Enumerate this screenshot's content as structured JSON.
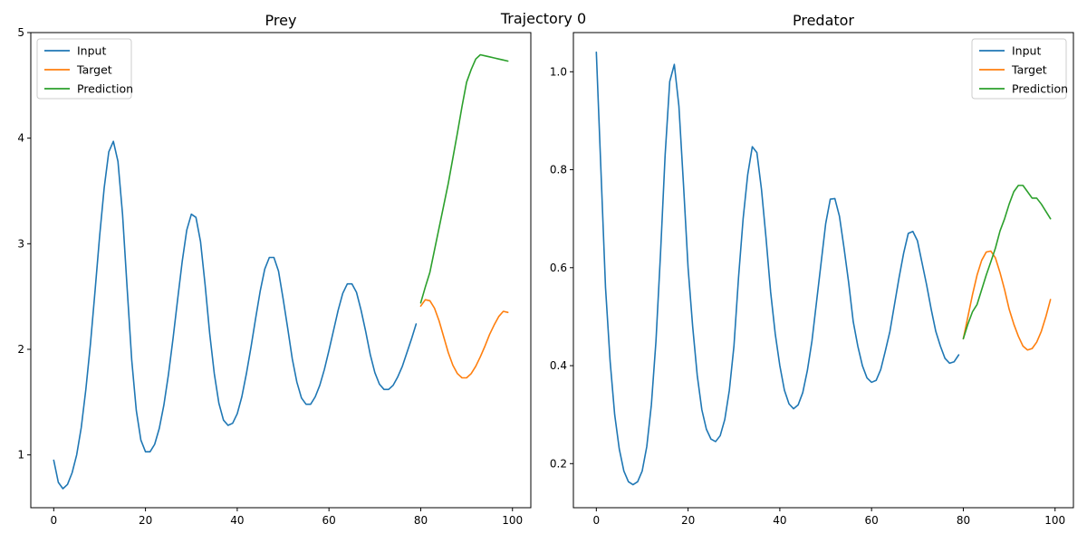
{
  "suptitle": "Trajectory 0",
  "chart_data": [
    {
      "type": "line",
      "title": "Prey",
      "xlabel": "",
      "ylabel": "",
      "xlim": [
        -5,
        104
      ],
      "ylim": [
        0.5,
        5.0
      ],
      "xticks": [
        0,
        20,
        40,
        60,
        80,
        100
      ],
      "yticks": [
        1,
        2,
        3,
        4,
        5
      ],
      "legend_position": "upper-left",
      "grid": false,
      "series": [
        {
          "name": "Input",
          "color": "#1f77b4",
          "x": [
            0,
            1,
            2,
            3,
            4,
            5,
            6,
            7,
            8,
            9,
            10,
            11,
            12,
            13,
            14,
            15,
            16,
            17,
            18,
            19,
            20,
            21,
            22,
            23,
            24,
            25,
            26,
            27,
            28,
            29,
            30,
            31,
            32,
            33,
            34,
            35,
            36,
            37,
            38,
            39,
            40,
            41,
            42,
            43,
            44,
            45,
            46,
            47,
            48,
            49,
            50,
            51,
            52,
            53,
            54,
            55,
            56,
            57,
            58,
            59,
            60,
            61,
            62,
            63,
            64,
            65,
            66,
            67,
            68,
            69,
            70,
            71,
            72,
            73,
            74,
            75,
            76,
            77,
            78,
            79
          ],
          "y": [
            0.95,
            0.74,
            0.68,
            0.72,
            0.83,
            1.0,
            1.26,
            1.62,
            2.05,
            2.55,
            3.07,
            3.53,
            3.87,
            3.97,
            3.78,
            3.28,
            2.58,
            1.9,
            1.42,
            1.14,
            1.03,
            1.03,
            1.1,
            1.25,
            1.47,
            1.76,
            2.1,
            2.47,
            2.83,
            3.13,
            3.28,
            3.25,
            3.02,
            2.61,
            2.15,
            1.77,
            1.49,
            1.33,
            1.28,
            1.3,
            1.39,
            1.55,
            1.77,
            2.02,
            2.29,
            2.55,
            2.76,
            2.87,
            2.87,
            2.74,
            2.48,
            2.2,
            1.91,
            1.69,
            1.54,
            1.48,
            1.48,
            1.55,
            1.66,
            1.81,
            1.99,
            2.18,
            2.37,
            2.53,
            2.62,
            2.62,
            2.54,
            2.37,
            2.17,
            1.95,
            1.78,
            1.67,
            1.62,
            1.62,
            1.66,
            1.74,
            1.84,
            1.97,
            2.1,
            2.24
          ]
        },
        {
          "name": "Target",
          "color": "#ff7f0e",
          "x": [
            80,
            81,
            82,
            83,
            84,
            85,
            86,
            87,
            88,
            89,
            90,
            91,
            92,
            93,
            94,
            95,
            96,
            97,
            98,
            99
          ],
          "y": [
            2.41,
            2.47,
            2.46,
            2.39,
            2.27,
            2.12,
            1.97,
            1.85,
            1.77,
            1.73,
            1.73,
            1.77,
            1.84,
            1.93,
            2.03,
            2.14,
            2.23,
            2.31,
            2.36,
            2.35
          ]
        },
        {
          "name": "Prediction",
          "color": "#2ca02c",
          "x": [
            80,
            81,
            82,
            83,
            84,
            85,
            86,
            87,
            88,
            89,
            90,
            91,
            92,
            93,
            94,
            95,
            96,
            97,
            98,
            99
          ],
          "y": [
            2.44,
            2.59,
            2.73,
            2.94,
            3.15,
            3.36,
            3.57,
            3.81,
            4.05,
            4.3,
            4.53,
            4.65,
            4.75,
            4.79,
            4.78,
            4.77,
            4.76,
            4.75,
            4.74,
            4.73
          ]
        }
      ]
    },
    {
      "type": "line",
      "title": "Predator",
      "xlabel": "",
      "ylabel": "",
      "xlim": [
        -5,
        104
      ],
      "ylim": [
        0.11,
        1.08
      ],
      "xticks": [
        0,
        20,
        40,
        60,
        80,
        100
      ],
      "yticks": [
        0.2,
        0.4,
        0.6,
        0.8,
        1.0
      ],
      "legend_position": "upper-right",
      "grid": false,
      "series": [
        {
          "name": "Input",
          "color": "#1f77b4",
          "x": [
            0,
            1,
            2,
            3,
            4,
            5,
            6,
            7,
            8,
            9,
            10,
            11,
            12,
            13,
            14,
            15,
            16,
            17,
            18,
            19,
            20,
            21,
            22,
            23,
            24,
            25,
            26,
            27,
            28,
            29,
            30,
            31,
            32,
            33,
            34,
            35,
            36,
            37,
            38,
            39,
            40,
            41,
            42,
            43,
            44,
            45,
            46,
            47,
            48,
            49,
            50,
            51,
            52,
            53,
            54,
            55,
            56,
            57,
            58,
            59,
            60,
            61,
            62,
            63,
            64,
            65,
            66,
            67,
            68,
            69,
            70,
            71,
            72,
            73,
            74,
            75,
            76,
            77,
            78,
            79
          ],
          "y": [
            1.04,
            0.8,
            0.56,
            0.41,
            0.3,
            0.23,
            0.185,
            0.163,
            0.157,
            0.163,
            0.185,
            0.235,
            0.32,
            0.45,
            0.63,
            0.83,
            0.98,
            1.015,
            0.93,
            0.77,
            0.6,
            0.48,
            0.38,
            0.31,
            0.27,
            0.25,
            0.245,
            0.257,
            0.29,
            0.35,
            0.44,
            0.58,
            0.7,
            0.79,
            0.847,
            0.835,
            0.76,
            0.66,
            0.55,
            0.465,
            0.4,
            0.35,
            0.322,
            0.312,
            0.32,
            0.345,
            0.39,
            0.45,
            0.53,
            0.61,
            0.69,
            0.74,
            0.741,
            0.705,
            0.64,
            0.57,
            0.49,
            0.44,
            0.4,
            0.375,
            0.366,
            0.37,
            0.392,
            0.43,
            0.47,
            0.525,
            0.58,
            0.63,
            0.67,
            0.674,
            0.655,
            0.61,
            0.565,
            0.515,
            0.47,
            0.44,
            0.415,
            0.405,
            0.408,
            0.422
          ]
        },
        {
          "name": "Target",
          "color": "#ff7f0e",
          "x": [
            80,
            81,
            82,
            83,
            84,
            85,
            86,
            87,
            88,
            89,
            90,
            91,
            92,
            93,
            94,
            95,
            96,
            97,
            98,
            99
          ],
          "y": [
            0.455,
            0.5,
            0.545,
            0.585,
            0.615,
            0.632,
            0.634,
            0.62,
            0.59,
            0.555,
            0.515,
            0.485,
            0.46,
            0.44,
            0.432,
            0.435,
            0.448,
            0.47,
            0.5,
            0.535
          ]
        },
        {
          "name": "Prediction",
          "color": "#2ca02c",
          "x": [
            80,
            81,
            82,
            83,
            84,
            85,
            86,
            87,
            88,
            89,
            90,
            91,
            92,
            93,
            94,
            95,
            96,
            97,
            98,
            99
          ],
          "y": [
            0.455,
            0.485,
            0.51,
            0.525,
            0.555,
            0.585,
            0.612,
            0.64,
            0.675,
            0.7,
            0.73,
            0.755,
            0.768,
            0.768,
            0.755,
            0.742,
            0.742,
            0.73,
            0.715,
            0.7
          ]
        }
      ]
    }
  ]
}
